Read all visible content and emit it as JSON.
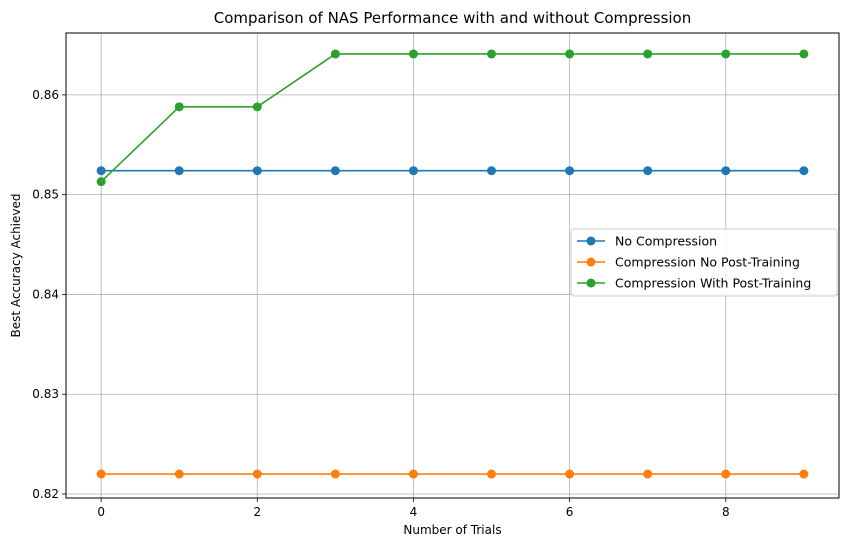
{
  "chart_data": {
    "type": "line",
    "title": "Comparison of NAS Performance with and without Compression",
    "xlabel": "Number of Trials",
    "ylabel": "Best Accuracy Achieved",
    "x": [
      0,
      1,
      2,
      3,
      4,
      5,
      6,
      7,
      8,
      9
    ],
    "xlim": [
      -0.45,
      9.45
    ],
    "ylim": [
      0.8196,
      0.8662
    ],
    "xticks": [
      0,
      2,
      4,
      6,
      8
    ],
    "yticks": [
      0.82,
      0.83,
      0.84,
      0.85,
      0.86
    ],
    "xtick_labels": [
      "0",
      "2",
      "4",
      "6",
      "8"
    ],
    "ytick_labels": [
      "0.82",
      "0.83",
      "0.84",
      "0.85",
      "0.86"
    ],
    "grid": true,
    "legend_position": "center-right",
    "series": [
      {
        "name": "No Compression",
        "color": "#1f77b4",
        "values": [
          0.8524,
          0.8524,
          0.8524,
          0.8524,
          0.8524,
          0.8524,
          0.8524,
          0.8524,
          0.8524,
          0.8524
        ]
      },
      {
        "name": "Compression No Post-Training",
        "color": "#ff7f0e",
        "values": [
          0.822,
          0.822,
          0.822,
          0.822,
          0.822,
          0.822,
          0.822,
          0.822,
          0.822,
          0.822
        ]
      },
      {
        "name": "Compression With Post-Training",
        "color": "#2ca02c",
        "values": [
          0.8513,
          0.8588,
          0.8588,
          0.8641,
          0.8641,
          0.8641,
          0.8641,
          0.8641,
          0.8641,
          0.8641
        ]
      }
    ]
  }
}
